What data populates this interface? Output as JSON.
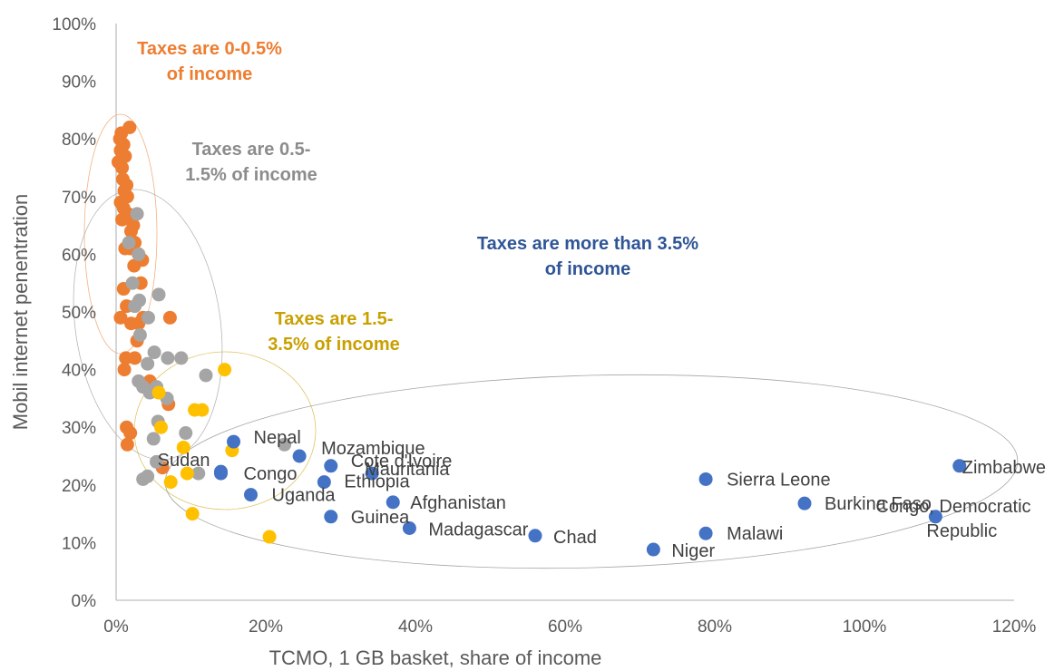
{
  "chart_data": {
    "type": "scatter",
    "xlabel": "TCMO, 1 GB basket, share of income",
    "ylabel": "Mobil internet penentration",
    "xlim": [
      0,
      120
    ],
    "ylim": [
      0,
      100
    ],
    "x_ticks": [
      "0%",
      "20%",
      "40%",
      "60%",
      "80%",
      "100%",
      "120%"
    ],
    "y_ticks": [
      "0%",
      "10%",
      "20%",
      "30%",
      "40%",
      "50%",
      "60%",
      "70%",
      "80%",
      "90%",
      "100%"
    ],
    "grid": false,
    "colors": {
      "orange": "#ED7D31",
      "gray": "#A5A5A5",
      "yellow": "#FFC000",
      "blue": "#4472C4"
    },
    "annotations": [
      {
        "color": "#ED7D31",
        "lines": [
          "Taxes are 0-0.5%",
          "of income"
        ]
      },
      {
        "color": "#8C8C8C",
        "lines": [
          "Taxes are 0.5-",
          "1.5% of income"
        ]
      },
      {
        "color": "#C9A000",
        "lines": [
          "Taxes are 1.5-",
          "3.5% of income"
        ]
      },
      {
        "color": "#2F5597",
        "lines": [
          "Taxes are more than 3.5%",
          "of income"
        ]
      }
    ],
    "series": [
      {
        "color": "#ED7D31",
        "points": [
          [
            0.3,
            76
          ],
          [
            0.5,
            80
          ],
          [
            0.6,
            78
          ],
          [
            0.7,
            81
          ],
          [
            0.8,
            75
          ],
          [
            0.9,
            73
          ],
          [
            1.0,
            79
          ],
          [
            1.1,
            71
          ],
          [
            0.6,
            69
          ],
          [
            0.8,
            66
          ],
          [
            1.0,
            68
          ],
          [
            1.2,
            77
          ],
          [
            1.4,
            72
          ],
          [
            1.5,
            70
          ],
          [
            1.8,
            82
          ],
          [
            1.6,
            67
          ],
          [
            2.3,
            65
          ],
          [
            2.0,
            64
          ],
          [
            2.5,
            62
          ],
          [
            1.9,
            61
          ],
          [
            1.2,
            61
          ],
          [
            3.0,
            60
          ],
          [
            3.5,
            59
          ],
          [
            2.4,
            58
          ],
          [
            1.0,
            54
          ],
          [
            1.4,
            51
          ],
          [
            0.6,
            49
          ],
          [
            2.0,
            48
          ],
          [
            3.3,
            55
          ],
          [
            3.0,
            48
          ],
          [
            2.8,
            45
          ],
          [
            3.6,
            49
          ],
          [
            1.3,
            42
          ],
          [
            2.5,
            42
          ],
          [
            1.1,
            40
          ],
          [
            4.5,
            38
          ],
          [
            5.0,
            37
          ],
          [
            1.4,
            30
          ],
          [
            1.9,
            29
          ],
          [
            1.5,
            27
          ],
          [
            6.2,
            23
          ],
          [
            7.0,
            34
          ],
          [
            7.2,
            49
          ]
        ]
      },
      {
        "color": "#A5A5A5",
        "points": [
          [
            2.8,
            67
          ],
          [
            1.7,
            62
          ],
          [
            3.0,
            60
          ],
          [
            2.2,
            55
          ],
          [
            3.1,
            52
          ],
          [
            2.5,
            51
          ],
          [
            5.7,
            53
          ],
          [
            4.3,
            49
          ],
          [
            3.2,
            46
          ],
          [
            5.1,
            43
          ],
          [
            6.9,
            42
          ],
          [
            8.7,
            42
          ],
          [
            4.2,
            41
          ],
          [
            3.0,
            38
          ],
          [
            3.6,
            37
          ],
          [
            5.4,
            37
          ],
          [
            4.5,
            36
          ],
          [
            6.8,
            35
          ],
          [
            12.0,
            39
          ],
          [
            5.6,
            31
          ],
          [
            9.3,
            29
          ],
          [
            5.0,
            28
          ],
          [
            22.5,
            27
          ],
          [
            5.4,
            24
          ],
          [
            11.0,
            22
          ],
          [
            3.6,
            21
          ],
          [
            4.2,
            21.5
          ]
        ]
      },
      {
        "color": "#FFC000",
        "points": [
          [
            14.5,
            40
          ],
          [
            5.7,
            36
          ],
          [
            10.5,
            33
          ],
          [
            11.5,
            33
          ],
          [
            6.0,
            30
          ],
          [
            15.5,
            26
          ],
          [
            9.0,
            26.5
          ],
          [
            9.5,
            22
          ],
          [
            7.3,
            20.5
          ],
          [
            10.2,
            15
          ],
          [
            20.5,
            11
          ]
        ]
      },
      {
        "color": "#4472C4",
        "points": [
          {
            "x": 15.7,
            "y": 27.5,
            "label": "Nepal"
          },
          {
            "x": 14.0,
            "y": 22.3,
            "label": "Sudan"
          },
          {
            "x": 24.5,
            "y": 25.0,
            "label": "Mozambique"
          },
          {
            "x": 28.7,
            "y": 23.3,
            "label": "Cote d'Ivoire"
          },
          {
            "x": 34.2,
            "y": 22.0,
            "label": "Mauritania"
          },
          {
            "x": 14.0,
            "y": 22.0,
            "label": "Congo"
          },
          {
            "x": 27.8,
            "y": 20.5,
            "label": "Ethiopia"
          },
          {
            "x": 18.0,
            "y": 18.3,
            "label": "Uganda"
          },
          {
            "x": 37.0,
            "y": 17.0,
            "label": "Afghanistan"
          },
          {
            "x": 28.7,
            "y": 14.5,
            "label": "Guinea"
          },
          {
            "x": 39.2,
            "y": 12.5,
            "label": "Madagascar"
          },
          {
            "x": 56.0,
            "y": 11.2,
            "label": "Chad"
          },
          {
            "x": 71.8,
            "y": 8.8,
            "label": "Niger"
          },
          {
            "x": 78.8,
            "y": 21.0,
            "label": "Sierra Leone"
          },
          {
            "x": 78.8,
            "y": 11.6,
            "label": "Malawi"
          },
          {
            "x": 92.0,
            "y": 16.8,
            "label": "Burkina Faso"
          },
          {
            "x": 109.5,
            "y": 14.5,
            "label": "Congo, Democratic Republic"
          },
          {
            "x": 112.7,
            "y": 23.3,
            "label": "Zimbabwe"
          }
        ]
      }
    ]
  }
}
